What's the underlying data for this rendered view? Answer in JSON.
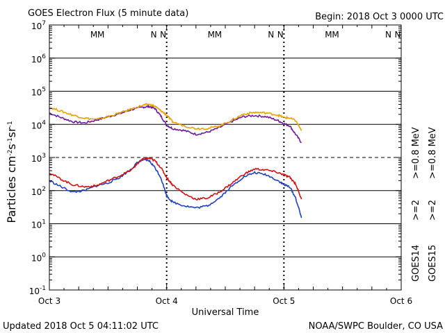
{
  "header": {
    "title": "GOES Electron Flux (5 minute data)",
    "begin": "Begin: 2018 Oct 3 0000 UTC"
  },
  "footer": {
    "updated": "Updated 2018 Oct  5 04:11:02 UTC",
    "credit": "NOAA/SWPC Boulder, CO USA"
  },
  "chart_data": {
    "type": "line",
    "title": "GOES Electron Flux (5 minute data)",
    "xlabel": "Universal Time",
    "ylabel": "Particles cm-2s-1sr-1",
    "yscale": "log",
    "ylim": [
      0.1,
      10000000
    ],
    "xlim": [
      0,
      3
    ],
    "x_unit": "days since Oct 3 00:00 UTC",
    "x_ticks": [
      "Oct 3",
      "Oct 4",
      "Oct 5",
      "Oct 6"
    ],
    "y_ticks": [
      {
        "base": "10",
        "exp": "-1"
      },
      {
        "base": "10",
        "exp": "0"
      },
      {
        "base": "10",
        "exp": "1"
      },
      {
        "base": "10",
        "exp": "2"
      },
      {
        "base": "10",
        "exp": "3"
      },
      {
        "base": "10",
        "exp": "4"
      },
      {
        "base": "10",
        "exp": "5"
      },
      {
        "base": "10",
        "exp": "6"
      },
      {
        "base": "10",
        "exp": "7"
      }
    ],
    "threshold": 1000,
    "grid": true,
    "markers": [
      {
        "label": "M",
        "color": "#1f3fbf",
        "day": 0.38
      },
      {
        "label": "M",
        "color": "#d01010",
        "day": 0.44
      },
      {
        "label": "N",
        "color": "#1f3fbf",
        "day": 0.89
      },
      {
        "label": "N",
        "color": "#d01010",
        "day": 0.97
      },
      {
        "label": "M",
        "color": "#1f3fbf",
        "day": 1.38
      },
      {
        "label": "M",
        "color": "#d01010",
        "day": 1.44
      },
      {
        "label": "N",
        "color": "#1f3fbf",
        "day": 1.89
      },
      {
        "label": "N",
        "color": "#d01010",
        "day": 1.97
      },
      {
        "label": "M",
        "color": "#1f3fbf",
        "day": 2.38
      },
      {
        "label": "M",
        "color": "#d01010",
        "day": 2.44
      },
      {
        "label": "N",
        "color": "#1f3fbf",
        "day": 2.89
      },
      {
        "label": "N",
        "color": "#d01010",
        "day": 2.97
      }
    ],
    "legend": [
      {
        "sat": "GOES14",
        "low": ">=2",
        "high": ">=0.8 MeV",
        "low_color": "#1f3fbf",
        "high_color": "#6a1a9a"
      },
      {
        "sat": "GOES15",
        "low": ">=2",
        "high": ">=0.8 MeV",
        "low_color": "#d01010",
        "high_color": "#e8a000"
      }
    ],
    "series": [
      {
        "name": "GOES14 >=0.8 MeV",
        "color": "#6a1a9a",
        "x": [
          0,
          0.1,
          0.2,
          0.3,
          0.4,
          0.5,
          0.6,
          0.7,
          0.8,
          0.85,
          0.9,
          0.95,
          1.0,
          1.05,
          1.15,
          1.25,
          1.35,
          1.45,
          1.55,
          1.65,
          1.75,
          1.85,
          1.95,
          2.0,
          2.05,
          2.1,
          2.15
        ],
        "y": [
          22000,
          16000,
          12000,
          11000,
          13500,
          17000,
          21000,
          28000,
          33000,
          35000,
          30000,
          18000,
          9500,
          7500,
          6500,
          5000,
          5800,
          8000,
          12000,
          17000,
          18500,
          17000,
          13000,
          10500,
          9000,
          5000,
          2800
        ]
      },
      {
        "name": "GOES15 >=0.8 MeV",
        "color": "#e8a000",
        "x": [
          0,
          0.1,
          0.2,
          0.3,
          0.4,
          0.5,
          0.6,
          0.7,
          0.8,
          0.85,
          0.9,
          0.95,
          1.0,
          1.05,
          1.15,
          1.25,
          1.35,
          1.45,
          1.55,
          1.65,
          1.75,
          1.85,
          1.95,
          2.0,
          2.05,
          2.1,
          2.15
        ],
        "y": [
          33000,
          25000,
          19000,
          15500,
          14000,
          17000,
          22000,
          29000,
          38000,
          40000,
          35000,
          26000,
          19000,
          12000,
          9000,
          7500,
          7500,
          9000,
          13000,
          20000,
          23000,
          22000,
          19000,
          16000,
          15500,
          13000,
          6500
        ]
      },
      {
        "name": "GOES14 >=2 MeV",
        "color": "#1f3fbf",
        "x": [
          0,
          0.1,
          0.2,
          0.3,
          0.4,
          0.5,
          0.6,
          0.7,
          0.75,
          0.8,
          0.85,
          0.9,
          0.95,
          1.0,
          1.05,
          1.15,
          1.25,
          1.35,
          1.45,
          1.55,
          1.65,
          1.75,
          1.85,
          1.95,
          2.0,
          2.05,
          2.1,
          2.15
        ],
        "y": [
          200,
          130,
          90,
          100,
          140,
          170,
          250,
          450,
          700,
          850,
          800,
          500,
          250,
          70,
          45,
          35,
          30,
          35,
          60,
          130,
          250,
          350,
          300,
          200,
          150,
          130,
          60,
          15
        ]
      },
      {
        "name": "GOES15 >=2 MeV",
        "color": "#d01010",
        "x": [
          0,
          0.1,
          0.2,
          0.3,
          0.4,
          0.5,
          0.6,
          0.7,
          0.75,
          0.8,
          0.85,
          0.9,
          0.95,
          1.0,
          1.05,
          1.15,
          1.25,
          1.35,
          1.45,
          1.55,
          1.65,
          1.75,
          1.85,
          1.95,
          2.0,
          2.05,
          2.1,
          2.15
        ],
        "y": [
          350,
          220,
          150,
          130,
          140,
          200,
          280,
          420,
          650,
          900,
          950,
          800,
          500,
          250,
          150,
          80,
          55,
          60,
          90,
          160,
          300,
          450,
          420,
          350,
          300,
          250,
          160,
          55
        ]
      }
    ]
  }
}
